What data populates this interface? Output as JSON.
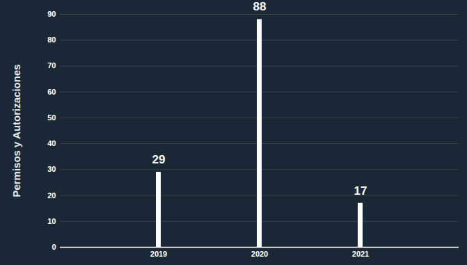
{
  "chart_data": {
    "type": "bar",
    "categories": [
      "2019",
      "2020",
      "2021"
    ],
    "values": [
      29,
      88,
      17
    ],
    "color": "#ffffff",
    "y_label": "Permisos y Autorizaciones",
    "ylim": [
      0,
      90
    ],
    "yticks": [
      0,
      10,
      20,
      30,
      40,
      50,
      60,
      70,
      80,
      90
    ],
    "grid": true,
    "data_labels": true
  }
}
